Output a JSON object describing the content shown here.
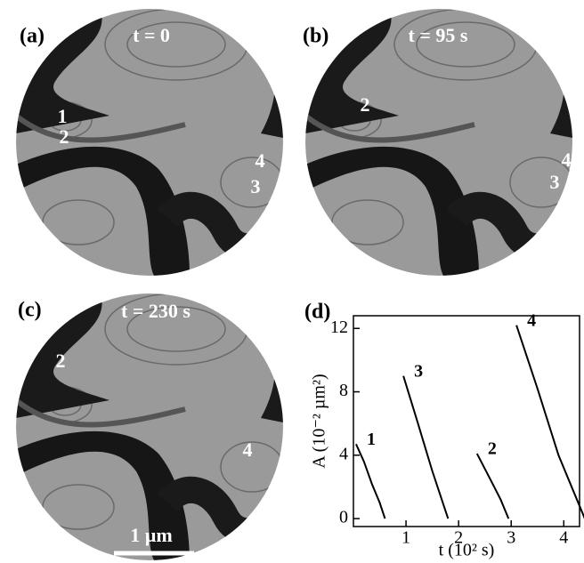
{
  "panels": [
    {
      "label": "(a)",
      "time": "t = 0",
      "markers": [
        "1",
        "2",
        "4",
        "3"
      ]
    },
    {
      "label": "(b)",
      "time": "t = 95 s",
      "markers": [
        "2",
        "4",
        "3"
      ]
    },
    {
      "label": "(c)",
      "time": "t = 230 s",
      "markers": [
        "2",
        "4"
      ],
      "scale_bar": "1 µm"
    }
  ],
  "chart_data": {
    "type": "line",
    "label": "(d)",
    "x_label": "t (10² s)",
    "y_label": "A (10⁻² µm²)",
    "xlim": [
      0,
      4.3
    ],
    "xticks": [
      1,
      2,
      3,
      4
    ],
    "ylim": [
      -0.5,
      12.8
    ],
    "yticks": [
      0,
      4,
      8,
      12
    ],
    "color": "#000000",
    "series": [
      {
        "name": "1",
        "x": [
          0.05,
          0.2,
          0.35,
          0.5,
          0.6
        ],
        "values": [
          4.7,
          3.6,
          2.2,
          1.0,
          0
        ]
      },
      {
        "name": "3",
        "x": [
          0.95,
          1.2,
          1.5,
          1.8
        ],
        "values": [
          9.0,
          6.3,
          3.0,
          0
        ]
      },
      {
        "name": "2",
        "x": [
          2.35,
          2.6,
          2.8,
          2.95
        ],
        "values": [
          4.1,
          2.5,
          1.2,
          0
        ]
      },
      {
        "name": "4",
        "x": [
          3.1,
          3.5,
          3.9,
          4.4
        ],
        "values": [
          12.2,
          8.2,
          4.0,
          0
        ]
      }
    ]
  }
}
